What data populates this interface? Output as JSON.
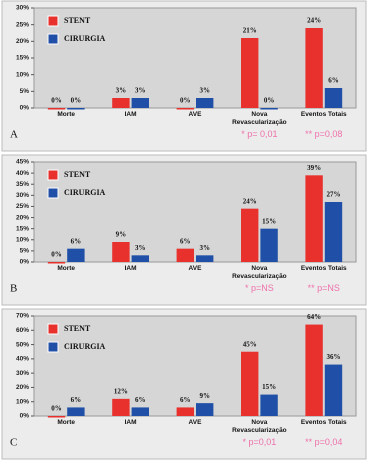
{
  "chart_data": [
    {
      "type": "bar",
      "panel": "A",
      "categories": [
        "Morte",
        "IAM",
        "AVE",
        "Nova Revascularização",
        "Eventos Totais"
      ],
      "series": [
        {
          "name": "STENT",
          "color": "#e8302c",
          "values": [
            0,
            3,
            0,
            21,
            24
          ],
          "value_labels": [
            "0%",
            "3%",
            "0%",
            "21%",
            "24%"
          ]
        },
        {
          "name": "CIRURGIA",
          "color": "#1f4fa6",
          "values": [
            0,
            3,
            3,
            0,
            6
          ],
          "value_labels": [
            "0%",
            "3%",
            "3%",
            "0%",
            "6%"
          ]
        }
      ],
      "ylim": [
        0,
        30
      ],
      "yticks": [
        {
          "value": 0,
          "label": "0%"
        },
        {
          "value": 5,
          "label": "5%"
        },
        {
          "value": 10,
          "label": "10%"
        },
        {
          "value": 15,
          "label": "15%"
        },
        {
          "value": 20,
          "label": "20%"
        },
        {
          "value": 25,
          "label": "25%"
        },
        {
          "value": 30,
          "label": "30%"
        }
      ],
      "annotations": [
        "* p= 0,01",
        "** p=0,08"
      ]
    },
    {
      "type": "bar",
      "panel": "B",
      "categories": [
        "Morte",
        "IAM",
        "AVE",
        "Nova Revascularização",
        "Eventos Totais"
      ],
      "series": [
        {
          "name": "STENT",
          "color": "#e8302c",
          "values": [
            0,
            9,
            6,
            24,
            39
          ],
          "value_labels": [
            "0%",
            "9%",
            "6%",
            "24%",
            "39%"
          ]
        },
        {
          "name": "CIRURGIA",
          "color": "#1f4fa6",
          "values": [
            6,
            3,
            3,
            15,
            27
          ],
          "value_labels": [
            "6%",
            "3%",
            "3%",
            "15%",
            "27%"
          ]
        }
      ],
      "ylim": [
        0,
        45
      ],
      "yticks": [
        {
          "value": 0,
          "label": "0%"
        },
        {
          "value": 5,
          "label": "5%"
        },
        {
          "value": 10,
          "label": "10%"
        },
        {
          "value": 15,
          "label": "15%"
        },
        {
          "value": 20,
          "label": "20%"
        },
        {
          "value": 25,
          "label": "25%"
        },
        {
          "value": 30,
          "label": "30%"
        },
        {
          "value": 35,
          "label": "35%"
        },
        {
          "value": 40,
          "label": "40%"
        },
        {
          "value": 45,
          "label": "45%"
        }
      ],
      "annotations": [
        "* p=NS",
        "** p=NS"
      ]
    },
    {
      "type": "bar",
      "panel": "C",
      "categories": [
        "Morte",
        "IAM",
        "AVE",
        "Nova Revascularização",
        "Eventos Totais"
      ],
      "series": [
        {
          "name": "STENT",
          "color": "#e8302c",
          "values": [
            0,
            12,
            6,
            45,
            64
          ],
          "value_labels": [
            "0%",
            "12%",
            "6%",
            "45%",
            "64%"
          ]
        },
        {
          "name": "CIRURGIA",
          "color": "#1f4fa6",
          "values": [
            6,
            6,
            9,
            15,
            36
          ],
          "value_labels": [
            "6%",
            "6%",
            "9%",
            "15%",
            "36%"
          ]
        }
      ],
      "ylim": [
        0,
        70
      ],
      "yticks": [
        {
          "value": 0,
          "label": "0%"
        },
        {
          "value": 10,
          "label": "10%"
        },
        {
          "value": 20,
          "label": "20%"
        },
        {
          "value": 30,
          "label": "30%"
        },
        {
          "value": 40,
          "label": "40%"
        },
        {
          "value": 50,
          "label": "50%"
        },
        {
          "value": 60,
          "label": "60%"
        },
        {
          "value": 70,
          "label": "70%"
        }
      ],
      "annotations": [
        "* p=0,01",
        "** p=0,04"
      ]
    }
  ]
}
